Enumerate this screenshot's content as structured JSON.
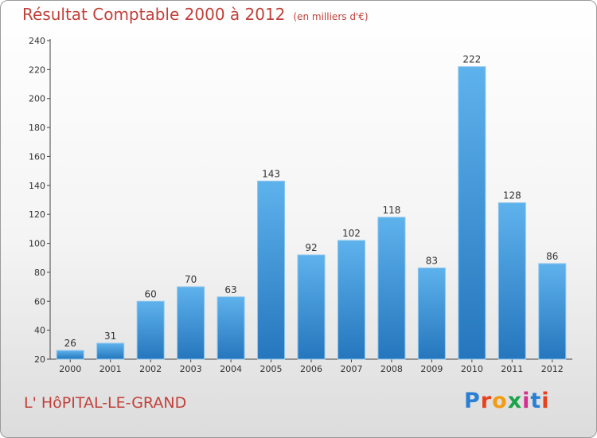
{
  "title": "Résultat Comptable 2000 à 2012",
  "subtitle": "(en milliers d'€)",
  "commune": "L' HôPITAL-LE-GRAND",
  "logo": {
    "letters": [
      "P",
      "r",
      "o",
      "x",
      "i",
      "t",
      "i"
    ],
    "colors": [
      "#2a7fd4",
      "#e8411e",
      "#f39c12",
      "#1aa34a",
      "#d62f8f",
      "#2a7fd4",
      "#e8411e"
    ]
  },
  "colors": {
    "bar_top": "#5eb2ec",
    "bar_bottom": "#2576bd",
    "title": "#c2403a"
  },
  "chart_data": {
    "type": "bar",
    "categories": [
      "2000",
      "2001",
      "2002",
      "2003",
      "2004",
      "2005",
      "2006",
      "2007",
      "2008",
      "2009",
      "2010",
      "2011",
      "2012"
    ],
    "values": [
      26,
      31,
      60,
      70,
      63,
      143,
      92,
      102,
      118,
      83,
      222,
      128,
      86
    ],
    "ylim": [
      20,
      240
    ],
    "yticks": [
      20,
      40,
      60,
      80,
      100,
      120,
      140,
      160,
      180,
      200,
      220,
      240
    ],
    "grid": false
  }
}
